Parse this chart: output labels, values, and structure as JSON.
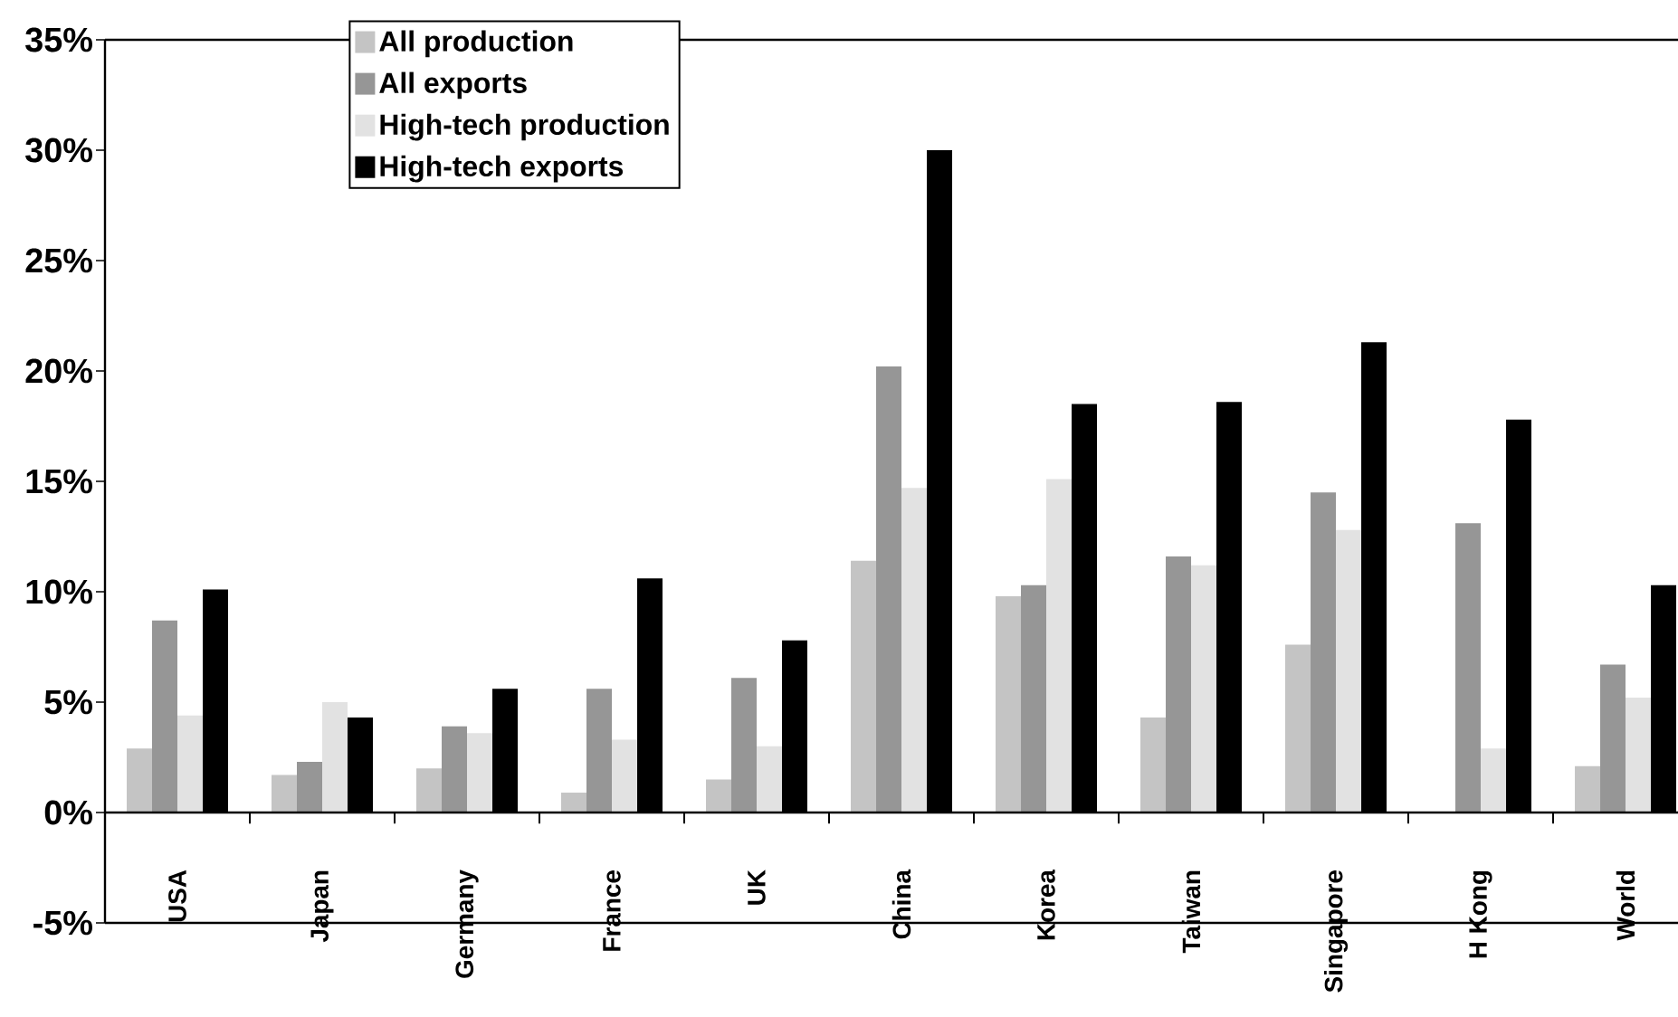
{
  "chart_data": {
    "type": "bar",
    "categories": [
      "USA",
      "Japan",
      "Germany",
      "France",
      "UK",
      "China",
      "Korea",
      "Taiwan",
      "Singapore",
      "H Kong",
      "World"
    ],
    "series": [
      {
        "name": "All production",
        "color": "#c4c4c4",
        "values": [
          2.9,
          1.7,
          2.0,
          0.9,
          1.5,
          11.4,
          9.8,
          4.3,
          7.6,
          0,
          2.1
        ]
      },
      {
        "name": "All exports",
        "color": "#969696",
        "values": [
          8.7,
          2.3,
          3.9,
          5.6,
          6.1,
          20.2,
          10.3,
          11.6,
          14.5,
          13.1,
          6.7
        ]
      },
      {
        "name": "High-tech production",
        "color": "#e2e2e2",
        "values": [
          4.4,
          5.0,
          3.6,
          3.3,
          3.0,
          14.7,
          15.1,
          11.2,
          12.8,
          2.9,
          5.2
        ]
      },
      {
        "name": "High-tech exports",
        "color": "#000000",
        "values": [
          10.1,
          4.3,
          5.6,
          10.6,
          7.8,
          30.0,
          18.5,
          18.6,
          21.3,
          17.8,
          10.3
        ]
      }
    ],
    "ylim": [
      -5,
      35
    ],
    "yticks": [
      {
        "value": -5,
        "label": "-5%"
      },
      {
        "value": 0,
        "label": "0%"
      },
      {
        "value": 5,
        "label": "5%"
      },
      {
        "value": 10,
        "label": "10%"
      },
      {
        "value": 15,
        "label": "15%"
      },
      {
        "value": 20,
        "label": "20%"
      },
      {
        "value": 25,
        "label": "25%"
      },
      {
        "value": 30,
        "label": "30%"
      },
      {
        "value": 35,
        "label": "35%"
      }
    ],
    "legend": "top"
  }
}
